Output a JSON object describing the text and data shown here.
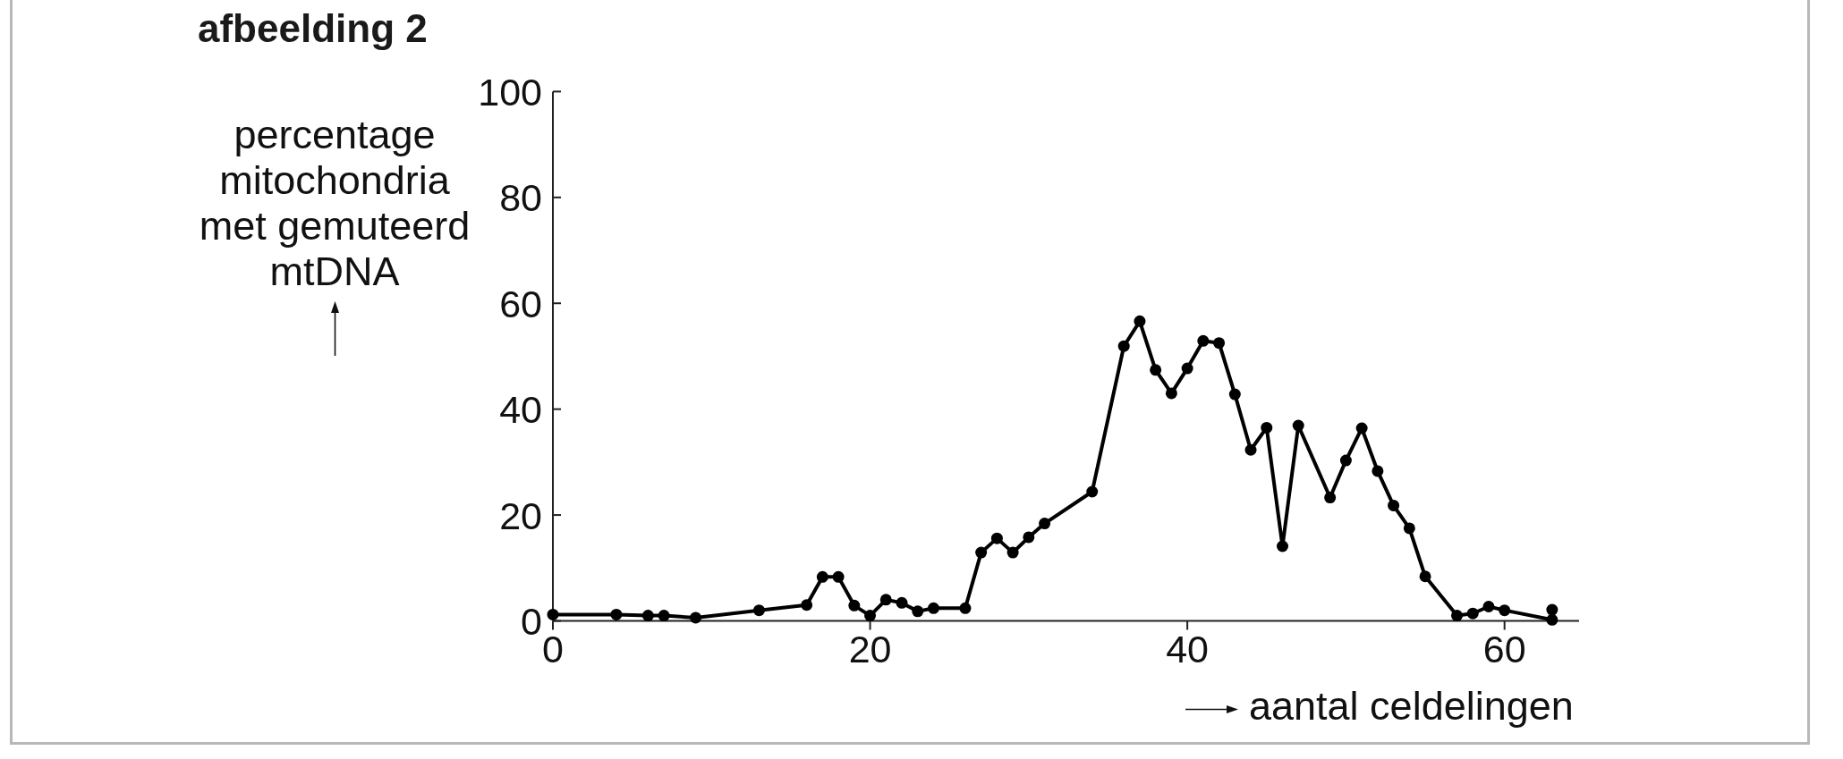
{
  "chart_data": {
    "type": "line",
    "title": "afbeelding 2",
    "xlabel": "aantal celdelingen",
    "ylabel": "percentage\nmitochondria\nmet gemuteerd\nmtDNA",
    "x": [
      0,
      4,
      6,
      7,
      9,
      13,
      16,
      17,
      18,
      19,
      20,
      21,
      22,
      23,
      24,
      26,
      27,
      28,
      29,
      30,
      31,
      34,
      36,
      37,
      38,
      39,
      40,
      41,
      42,
      43,
      44,
      45,
      46,
      47,
      49,
      50,
      51,
      52,
      53,
      54,
      55,
      57,
      58,
      59,
      60,
      63,
      63
    ],
    "series": [
      {
        "color": "#000000",
        "values": [
          1.2,
          1.2,
          1.0,
          1.0,
          0.6,
          2.0,
          3.0,
          8.3,
          8.3,
          2.9,
          1.0,
          4.0,
          3.4,
          1.8,
          2.4,
          2.4,
          12.9,
          15.6,
          12.9,
          15.8,
          18.4,
          24.4,
          51.9,
          56.6,
          47.4,
          43.0,
          47.7,
          52.9,
          52.5,
          42.8,
          32.3,
          36.5,
          14.1,
          36.9,
          23.3,
          30.3,
          36.4,
          28.3,
          21.8,
          17.5,
          8.4,
          1.0,
          1.4,
          2.7,
          2.0,
          0.2,
          2.1
        ]
      }
    ],
    "xlim": [
      0,
      64.7
    ],
    "ylim": [
      0,
      100
    ],
    "xticks": [
      0,
      20,
      40,
      60
    ],
    "yticks": [
      0,
      20,
      40,
      60,
      80,
      100
    ],
    "marker": "circle",
    "line_style": "solid"
  }
}
